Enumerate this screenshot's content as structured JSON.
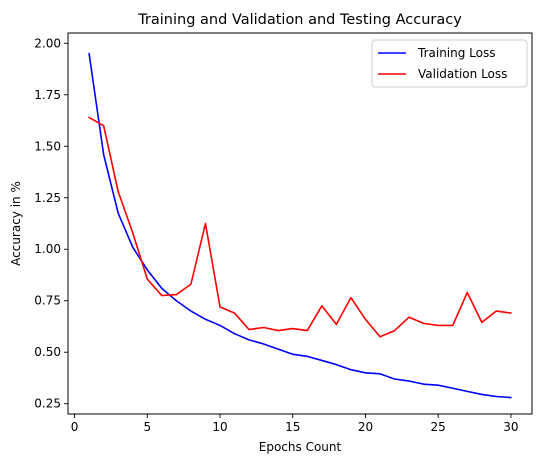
{
  "chart_data": {
    "type": "line",
    "title": "Training and Validation and Testing Accuracy",
    "xlabel": "Epochs Count",
    "ylabel": "Accuracy in %",
    "xlim": [
      -0.45,
      31.45
    ],
    "ylim": [
      0.2,
      2.05
    ],
    "xticks": [
      0,
      5,
      10,
      15,
      20,
      25,
      30
    ],
    "yticks": [
      0.25,
      0.5,
      0.75,
      1.0,
      1.25,
      1.5,
      1.75,
      2.0
    ],
    "ytick_labels": [
      "0.25",
      "0.50",
      "0.75",
      "1.00",
      "1.25",
      "1.50",
      "1.75",
      "2.00"
    ],
    "grid": false,
    "legend_position": "upper right",
    "x": [
      1,
      2,
      3,
      4,
      5,
      6,
      7,
      8,
      9,
      10,
      11,
      12,
      13,
      14,
      15,
      16,
      17,
      18,
      19,
      20,
      21,
      22,
      23,
      24,
      25,
      26,
      27,
      28,
      29,
      30
    ],
    "series": [
      {
        "name": "Training Loss",
        "color": "#0000ff",
        "values": [
          1.95,
          1.46,
          1.175,
          1.01,
          0.9,
          0.81,
          0.75,
          0.7,
          0.66,
          0.63,
          0.59,
          0.56,
          0.54,
          0.515,
          0.49,
          0.48,
          0.46,
          0.44,
          0.415,
          0.4,
          0.395,
          0.37,
          0.36,
          0.345,
          0.34,
          0.325,
          0.31,
          0.295,
          0.285,
          0.28
        ]
      },
      {
        "name": "Validation Loss",
        "color": "#ff0000",
        "values": [
          1.64,
          1.6,
          1.28,
          1.08,
          0.855,
          0.775,
          0.78,
          0.83,
          1.125,
          0.72,
          0.69,
          0.61,
          0.62,
          0.605,
          0.615,
          0.605,
          0.725,
          0.635,
          0.765,
          0.66,
          0.575,
          0.605,
          0.67,
          0.64,
          0.63,
          0.63,
          0.79,
          0.645,
          0.7,
          0.69
        ]
      }
    ]
  }
}
